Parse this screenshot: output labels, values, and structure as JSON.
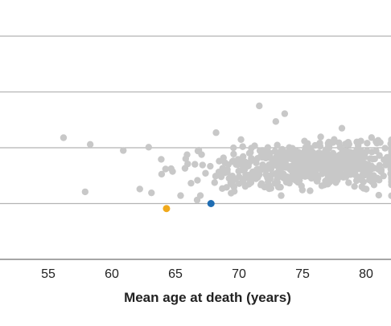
{
  "chart_data": {
    "type": "scatter",
    "xlabel": "Mean age at death (years)",
    "ylabel": "",
    "xlim": [
      52,
      82
    ],
    "ylim": [
      -0.5,
      4.5
    ],
    "x_ticks": [
      55,
      60,
      65,
      70,
      75,
      80
    ],
    "y_gridlines": [
      0,
      1,
      2,
      3,
      4
    ],
    "grid": "horizontal",
    "colors": {
      "background_points": "#c8c8c8",
      "highlight_orange": "#f0a91c",
      "highlight_blue": "#1f6db3",
      "gridline": "#b4b4b4",
      "axis": "#888888"
    },
    "highlighted": [
      {
        "x": 64.3,
        "y": 0.91,
        "color": "#f0a91c"
      },
      {
        "x": 67.8,
        "y": 1.0,
        "color": "#1f6db3"
      }
    ],
    "background_cloud": {
      "count": 700,
      "center_x": 76,
      "center_y": 1.68,
      "x_spread": 3.2,
      "y_spread": 0.17,
      "x_min": 56,
      "x_max": 82
    },
    "notable_points": [
      {
        "x": 56.2,
        "y": 2.18
      },
      {
        "x": 58.3,
        "y": 2.06
      },
      {
        "x": 57.9,
        "y": 1.21
      },
      {
        "x": 71.6,
        "y": 2.75
      },
      {
        "x": 73.6,
        "y": 2.61
      },
      {
        "x": 72.9,
        "y": 2.47
      },
      {
        "x": 68.2,
        "y": 2.27
      },
      {
        "x": 78.1,
        "y": 2.35
      },
      {
        "x": 62.9,
        "y": 2.01
      },
      {
        "x": 62.2,
        "y": 1.26
      },
      {
        "x": 60.9,
        "y": 1.95
      },
      {
        "x": 81.0,
        "y": 1.15
      }
    ]
  }
}
